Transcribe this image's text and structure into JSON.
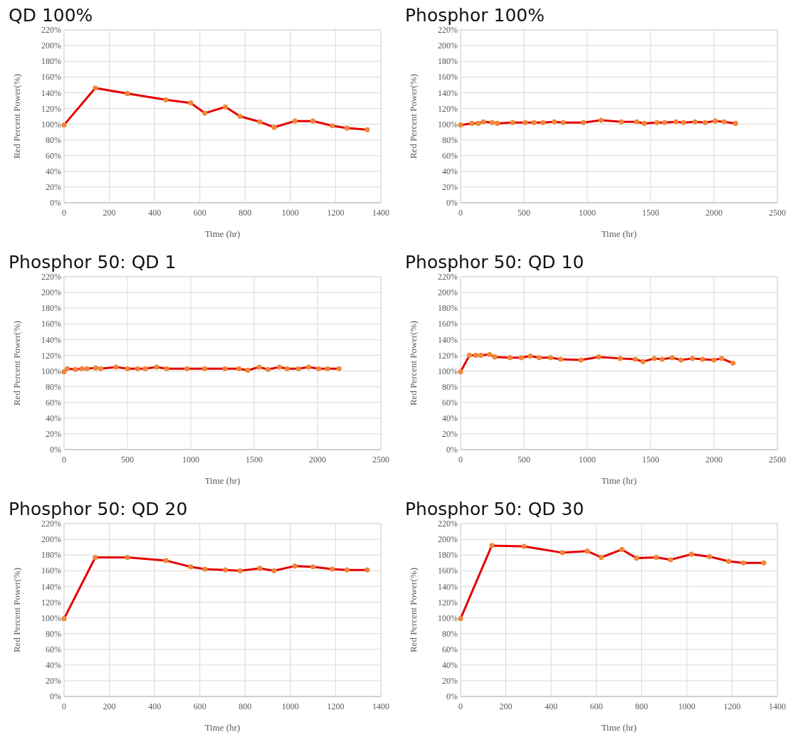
{
  "chart_data": [
    {
      "type": "line",
      "title": "QD 100%",
      "xlabel": "Time (hr)",
      "ylabel": "Red Percent Power(%)",
      "grid": true,
      "marker": "circle",
      "line_style": "solid",
      "xlim": [
        0,
        1400
      ],
      "xticks": [
        0,
        200,
        400,
        600,
        800,
        1000,
        1200,
        1400
      ],
      "ylim": [
        0,
        220
      ],
      "yticks": [
        {
          "value": 0,
          "label": "0%"
        },
        {
          "value": 20,
          "label": "20%"
        },
        {
          "value": 40,
          "label": "40%"
        },
        {
          "value": 60,
          "label": "60%"
        },
        {
          "value": 80,
          "label": "80%"
        },
        {
          "value": 100,
          "label": "100%"
        },
        {
          "value": 120,
          "label": "120%"
        },
        {
          "value": 140,
          "label": "140%"
        },
        {
          "value": 160,
          "label": "160%"
        },
        {
          "value": 180,
          "label": "180%"
        },
        {
          "value": 200,
          "label": "200%"
        },
        {
          "value": 220,
          "label": "220%"
        }
      ],
      "x": [
        0,
        138,
        280,
        450,
        560,
        622,
        713,
        778,
        865,
        928,
        1020,
        1100,
        1185,
        1250,
        1340
      ],
      "series": [
        {
          "color": "#e50000",
          "values": [
            99,
            146,
            139,
            131,
            127,
            114,
            122,
            110,
            103,
            96,
            104,
            104,
            98,
            95,
            93
          ]
        }
      ]
    },
    {
      "type": "line",
      "title": "Phosphor 100%",
      "xlabel": "Time (hr)",
      "ylabel": "Red Percent Power(%)",
      "grid": true,
      "marker": "circle",
      "line_style": "solid",
      "xlim": [
        0,
        2500
      ],
      "xticks": [
        0,
        500,
        1000,
        1500,
        2000,
        2500
      ],
      "ylim": [
        0,
        220
      ],
      "yticks": [
        {
          "value": 0,
          "label": "0%"
        },
        {
          "value": 20,
          "label": "20%"
        },
        {
          "value": 40,
          "label": "40%"
        },
        {
          "value": 60,
          "label": "60%"
        },
        {
          "value": 80,
          "label": "80%"
        },
        {
          "value": 100,
          "label": "100%"
        },
        {
          "value": 120,
          "label": "120%"
        },
        {
          "value": 140,
          "label": "140%"
        },
        {
          "value": 160,
          "label": "160%"
        },
        {
          "value": 180,
          "label": "180%"
        },
        {
          "value": 200,
          "label": "200%"
        },
        {
          "value": 220,
          "label": "220%"
        }
      ],
      "x": [
        0,
        90,
        140,
        180,
        250,
        290,
        410,
        510,
        580,
        650,
        740,
        810,
        970,
        1110,
        1270,
        1390,
        1450,
        1550,
        1610,
        1700,
        1760,
        1850,
        1930,
        2010,
        2080,
        2170
      ],
      "series": [
        {
          "color": "#e50000",
          "values": [
            99,
            101,
            101,
            103,
            102,
            101,
            102,
            102,
            102,
            102,
            103,
            102,
            102,
            105,
            103,
            103,
            101,
            102,
            102,
            103,
            102,
            103,
            102,
            104,
            103,
            101
          ]
        }
      ]
    },
    {
      "type": "line",
      "title": "Phosphor 50: QD 1",
      "xlabel": "Time (hr)",
      "ylabel": "Red Percent Power(%)",
      "grid": true,
      "marker": "circle",
      "line_style": "solid",
      "xlim": [
        0,
        2500
      ],
      "xticks": [
        0,
        500,
        1000,
        1500,
        2000,
        2500
      ],
      "ylim": [
        0,
        220
      ],
      "yticks": [
        {
          "value": 0,
          "label": "0%"
        },
        {
          "value": 20,
          "label": "20%"
        },
        {
          "value": 40,
          "label": "40%"
        },
        {
          "value": 60,
          "label": "60%"
        },
        {
          "value": 80,
          "label": "80%"
        },
        {
          "value": 100,
          "label": "100%"
        },
        {
          "value": 120,
          "label": "120%"
        },
        {
          "value": 140,
          "label": "140%"
        },
        {
          "value": 160,
          "label": "160%"
        },
        {
          "value": 180,
          "label": "180%"
        },
        {
          "value": 200,
          "label": "200%"
        },
        {
          "value": 220,
          "label": "220%"
        }
      ],
      "x": [
        0,
        25,
        90,
        140,
        180,
        250,
        290,
        410,
        500,
        580,
        640,
        730,
        810,
        970,
        1110,
        1270,
        1380,
        1450,
        1540,
        1610,
        1700,
        1760,
        1850,
        1930,
        2010,
        2080,
        2170
      ],
      "series": [
        {
          "color": "#e50000",
          "values": [
            99,
            103,
            102,
            103,
            103,
            104,
            103,
            105,
            103,
            103,
            103,
            105,
            103,
            103,
            103,
            103,
            103,
            101,
            105,
            102,
            105,
            103,
            103,
            105,
            103,
            103,
            103
          ]
        }
      ]
    },
    {
      "type": "line",
      "title": "Phosphor 50: QD 10",
      "xlabel": "Time (hr)",
      "ylabel": "Red Percent Power(%)",
      "grid": true,
      "marker": "circle",
      "line_style": "solid",
      "xlim": [
        0,
        2500
      ],
      "xticks": [
        0,
        500,
        1000,
        1500,
        2000,
        2500
      ],
      "ylim": [
        0,
        220
      ],
      "yticks": [
        {
          "value": 0,
          "label": "0%"
        },
        {
          "value": 20,
          "label": "20%"
        },
        {
          "value": 40,
          "label": "40%"
        },
        {
          "value": 60,
          "label": "60%"
        },
        {
          "value": 80,
          "label": "80%"
        },
        {
          "value": 100,
          "label": "100%"
        },
        {
          "value": 120,
          "label": "120%"
        },
        {
          "value": 140,
          "label": "140%"
        },
        {
          "value": 160,
          "label": "160%"
        },
        {
          "value": 180,
          "label": "180%"
        },
        {
          "value": 200,
          "label": "200%"
        },
        {
          "value": 220,
          "label": "220%"
        }
      ],
      "x": [
        0,
        70,
        120,
        160,
        230,
        270,
        390,
        480,
        550,
        620,
        710,
        790,
        950,
        1090,
        1260,
        1380,
        1440,
        1530,
        1590,
        1670,
        1740,
        1830,
        1910,
        2000,
        2060,
        2150
      ],
      "series": [
        {
          "color": "#e50000",
          "values": [
            99,
            120,
            120,
            120,
            121,
            118,
            117,
            117,
            119,
            117,
            117,
            115,
            114,
            118,
            116,
            115,
            112,
            116,
            115,
            117,
            114,
            116,
            115,
            114,
            116,
            110
          ]
        }
      ]
    },
    {
      "type": "line",
      "title": "Phosphor 50: QD 20",
      "xlabel": "Time (hr)",
      "ylabel": "Red Percent Power(%)",
      "grid": true,
      "marker": "circle",
      "line_style": "solid",
      "xlim": [
        0,
        1400
      ],
      "xticks": [
        0,
        200,
        400,
        600,
        800,
        1000,
        1200,
        1400
      ],
      "ylim": [
        0,
        220
      ],
      "yticks": [
        {
          "value": 0,
          "label": "0%"
        },
        {
          "value": 20,
          "label": "20%"
        },
        {
          "value": 40,
          "label": "40%"
        },
        {
          "value": 60,
          "label": "60%"
        },
        {
          "value": 80,
          "label": "80%"
        },
        {
          "value": 100,
          "label": "100%"
        },
        {
          "value": 120,
          "label": "120%"
        },
        {
          "value": 140,
          "label": "140%"
        },
        {
          "value": 160,
          "label": "160%"
        },
        {
          "value": 180,
          "label": "180%"
        },
        {
          "value": 200,
          "label": "200%"
        },
        {
          "value": 220,
          "label": "220%"
        }
      ],
      "x": [
        0,
        138,
        280,
        450,
        560,
        622,
        713,
        778,
        865,
        928,
        1020,
        1100,
        1185,
        1250,
        1340
      ],
      "series": [
        {
          "color": "#e50000",
          "values": [
            99,
            177,
            177,
            173,
            165,
            162,
            161,
            160,
            163,
            160,
            166,
            165,
            162,
            161,
            161
          ]
        }
      ]
    },
    {
      "type": "line",
      "title": "Phosphor 50: QD 30",
      "xlabel": "Time (hr)",
      "ylabel": "Red Percent Power(%)",
      "grid": true,
      "marker": "circle",
      "line_style": "solid",
      "xlim": [
        0,
        1400
      ],
      "xticks": [
        0,
        200,
        400,
        600,
        800,
        1000,
        1200,
        1400
      ],
      "ylim": [
        0,
        220
      ],
      "yticks": [
        {
          "value": 0,
          "label": "0%"
        },
        {
          "value": 20,
          "label": "20%"
        },
        {
          "value": 40,
          "label": "40%"
        },
        {
          "value": 60,
          "label": "60%"
        },
        {
          "value": 80,
          "label": "80%"
        },
        {
          "value": 100,
          "label": "100%"
        },
        {
          "value": 120,
          "label": "120%"
        },
        {
          "value": 140,
          "label": "140%"
        },
        {
          "value": 160,
          "label": "160%"
        },
        {
          "value": 180,
          "label": "180%"
        },
        {
          "value": 200,
          "label": "200%"
        },
        {
          "value": 220,
          "label": "220%"
        }
      ],
      "x": [
        0,
        138,
        280,
        450,
        560,
        622,
        713,
        778,
        865,
        928,
        1020,
        1100,
        1185,
        1250,
        1340
      ],
      "series": [
        {
          "color": "#e50000",
          "values": [
            99,
            192,
            191,
            183,
            185,
            177,
            187,
            176,
            177,
            174,
            181,
            178,
            172,
            170,
            170
          ]
        }
      ]
    }
  ]
}
